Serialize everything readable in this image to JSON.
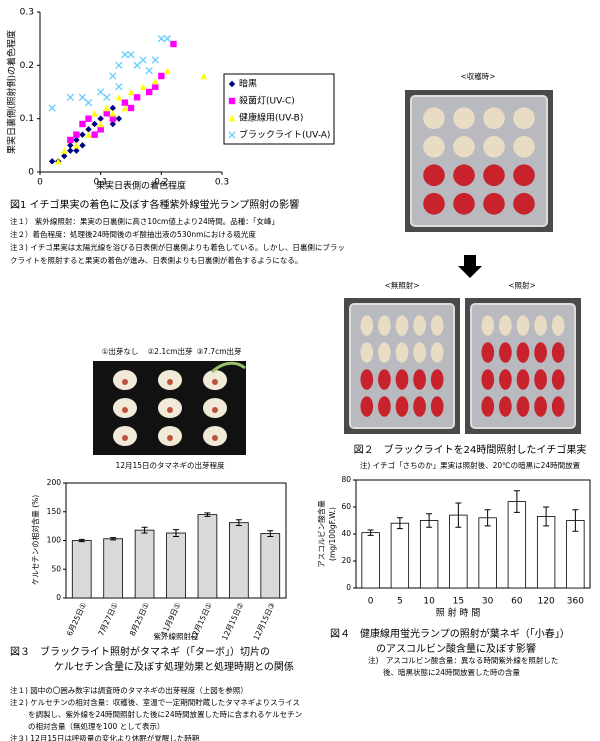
{
  "chart_data": [
    {
      "type": "scatter",
      "ylabel": "果実日裏側(照射側)の着色程度",
      "xlabel": "果実日表側の着色程度",
      "xlim": [
        0,
        0.3
      ],
      "ylim": [
        0,
        0.3
      ],
      "xticks": [
        0,
        0.1,
        0.2,
        0.3
      ],
      "yticks": [
        0,
        0.1,
        0.2,
        0.3
      ],
      "series": [
        {
          "name": "暗黒",
          "color": "#000080",
          "marker": "diamond",
          "x": [
            0.02,
            0.03,
            0.04,
            0.05,
            0.06,
            0.07,
            0.08,
            0.09,
            0.1,
            0.11,
            0.12,
            0.13,
            0.09,
            0.07,
            0.1,
            0.12,
            0.14,
            0.08,
            0.06,
            0.05
          ],
          "y": [
            0.02,
            0.02,
            0.03,
            0.05,
            0.06,
            0.07,
            0.08,
            0.09,
            0.1,
            0.11,
            0.12,
            0.1,
            0.07,
            0.05,
            0.08,
            0.09,
            0.13,
            0.1,
            0.04,
            0.04
          ]
        },
        {
          "name": "殺菌灯(UV-C)",
          "color": "#ff00ff",
          "marker": "square",
          "x": [
            0.05,
            0.07,
            0.08,
            0.1,
            0.12,
            0.14,
            0.15,
            0.18,
            0.2,
            0.22,
            0.19,
            0.16,
            0.09,
            0.11,
            0.06
          ],
          "y": [
            0.06,
            0.09,
            0.1,
            0.08,
            0.1,
            0.13,
            0.12,
            0.15,
            0.18,
            0.24,
            0.16,
            0.14,
            0.07,
            0.11,
            0.07
          ]
        },
        {
          "name": "健康線用(UV-B)",
          "color": "#ffff00",
          "marker": "triangle",
          "x": [
            0.03,
            0.04,
            0.06,
            0.08,
            0.1,
            0.11,
            0.12,
            0.13,
            0.15,
            0.17,
            0.19,
            0.21,
            0.27,
            0.09,
            0.14
          ],
          "y": [
            0.02,
            0.04,
            0.05,
            0.07,
            0.09,
            0.12,
            0.11,
            0.14,
            0.15,
            0.16,
            0.17,
            0.19,
            0.18,
            0.11,
            0.12
          ]
        },
        {
          "name": "ブラックライト(UV-A)",
          "color": "#66ccff",
          "marker": "cross",
          "x": [
            0.02,
            0.05,
            0.07,
            0.08,
            0.1,
            0.12,
            0.13,
            0.14,
            0.16,
            0.17,
            0.18,
            0.19,
            0.2,
            0.21,
            0.15,
            0.11,
            0.13
          ],
          "y": [
            0.12,
            0.14,
            0.14,
            0.13,
            0.15,
            0.18,
            0.2,
            0.22,
            0.2,
            0.21,
            0.19,
            0.21,
            0.25,
            0.25,
            0.22,
            0.14,
            0.16
          ]
        }
      ]
    },
    {
      "type": "bar",
      "ylabel": "ケルセチンの相対含量 (%)",
      "xlabel": "紫外線照射日",
      "categories": [
        "6月25日①",
        "7月27日①",
        "8月25日①",
        "11月9日①",
        "12月15日①",
        "12月15日②",
        "12月15日③"
      ],
      "values": [
        100,
        103,
        118,
        113,
        145,
        131,
        112
      ],
      "errors": [
        2,
        2,
        5,
        6,
        3,
        5,
        5
      ],
      "color": "#d9d9d9",
      "ylim": [
        0,
        200
      ],
      "yticks": [
        0,
        50,
        100,
        150,
        200
      ]
    },
    {
      "type": "bar",
      "ylabel": "アスコルビン酸含量",
      "ylabel_unit": "(mg/100gF.W.)",
      "xlabel": "照 射 時 間",
      "categories": [
        "0",
        "5",
        "10",
        "15",
        "30",
        "60",
        "120",
        "360"
      ],
      "values": [
        41,
        48,
        50,
        54,
        52,
        64,
        53,
        50
      ],
      "errors": [
        2,
        4,
        5,
        9,
        6,
        8,
        7,
        8
      ],
      "color": "#ffffff",
      "ylim": [
        0,
        80
      ],
      "yticks": [
        0,
        20,
        40,
        60,
        80
      ]
    }
  ],
  "fig1": {
    "caption": "図1 イチゴ果実の着色に及ぼす各種紫外線蛍光ランプ照射の影響",
    "notes": [
      [
        "注１） 紫外線照射：果実の日裏側に高さ10cm値上より24時間。品種：「女峰」"
      ],
      [
        "注２）着色程度：処理後24時間後のギ酸抽出液の530nmにおける吸光度"
      ],
      [
        "注３) イチゴ果実は太陽光線を浴びる日表側が日裏側よりも着色している。しかし、日裏側にブラッ",
        "クライトを照射すると果実の着色が進み、日表側よりも日裏側が着色するようになる。"
      ]
    ]
  },
  "fig2": {
    "labels": [
      "<収穫時>",
      "<無照射>",
      "<照射>"
    ],
    "caption": "図２　ブラックライトを24時間照射したイチゴ果実",
    "note": "注) イチゴ「さちのか」果実は照射後、20℃の暗黒に24時間放置"
  },
  "onion_photo": {
    "labels": [
      "①出芽なし",
      "②2.1cm出芽",
      "③7.7cm出芽"
    ],
    "caption": "12月15日のタマネギの出芽程度"
  },
  "fig3": {
    "caption": [
      "図３　ブラックライト照射がタマネギ（「ターボ」）切片の",
      "ケルセチン含量に及ぼす処理効果と処理時期との関係"
    ],
    "notes": [
      [
        "注１) 図中の〇囲み数字は調査時のタマネギの出芽程度（上図を参照）"
      ],
      [
        "注２) ケルセチンの相対含量：収穫後、室温で一定期間貯蔵したタマネギよりスライス",
        "を調製し、紫外線を24時間照射した後に24時間放置した時に含まれるケルセチン",
        "の相対含量（無処理を100 として表示）"
      ],
      [
        "注３) 12月15日は呼吸量の変化より休眠が覚醒した時期"
      ]
    ]
  },
  "fig4": {
    "caption": [
      "図４　健康線用蛍光ランプの照射が葉ネギ（「小春」）",
      "のアスコルビン酸含量に及ぼす影響"
    ],
    "note": [
      "注)　アスコルビン酸含量：異なる時間紫外線を照射した",
      "後、暗黒状態に24時間放置した時の含量"
    ]
  }
}
